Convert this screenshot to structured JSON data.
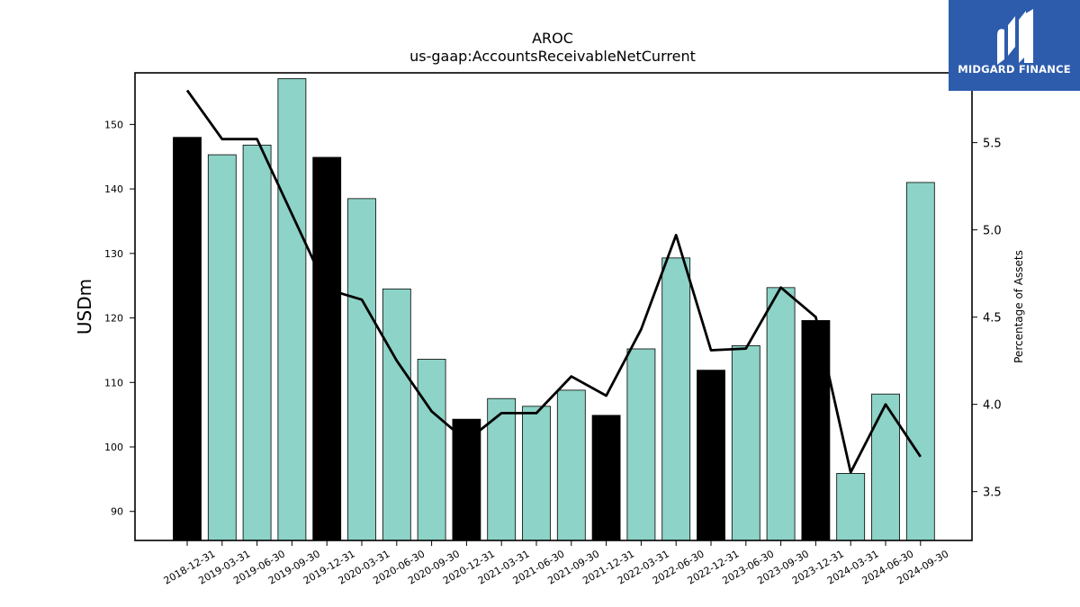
{
  "chart_data": {
    "type": "bar",
    "title": "AROC",
    "subtitle": "us-gaap:AccountsReceivableNetCurrent",
    "ylabel": "USDm",
    "y2label": "Percentage of Assets",
    "ylim": [
      85.5,
      158
    ],
    "y2lim": [
      3.22,
      5.9
    ],
    "yticks": [
      90,
      100,
      110,
      120,
      130,
      140,
      150
    ],
    "y2ticks": [
      3.5,
      4.0,
      4.5,
      5.0,
      5.5
    ],
    "categories": [
      "2018-12-31",
      "2019-03-31",
      "2019-06-30",
      "2019-09-30",
      "2019-12-31",
      "2020-03-31",
      "2020-06-30",
      "2020-09-30",
      "2020-12-31",
      "2021-03-31",
      "2021-06-30",
      "2021-09-30",
      "2021-12-31",
      "2022-03-31",
      "2022-06-30",
      "2022-12-31",
      "2023-06-30",
      "2023-09-30",
      "2023-12-31",
      "2024-03-31",
      "2024-06-30",
      "2024-09-30"
    ],
    "series": [
      {
        "type": "bar",
        "axis": "left",
        "values": [
          148.0,
          145.3,
          146.8,
          157.1,
          144.9,
          138.5,
          124.5,
          113.6,
          104.3,
          107.5,
          106.3,
          108.8,
          104.9,
          115.2,
          129.3,
          111.9,
          115.7,
          124.7,
          119.6,
          95.9,
          108.2,
          141.0
        ],
        "fiscal_year_end": [
          true,
          false,
          false,
          false,
          true,
          false,
          false,
          false,
          true,
          false,
          false,
          false,
          true,
          false,
          false,
          true,
          false,
          false,
          true,
          false,
          false,
          false
        ]
      },
      {
        "type": "line",
        "axis": "right",
        "values": [
          5.8,
          5.52,
          5.52,
          5.09,
          4.66,
          4.6,
          4.25,
          3.96,
          3.79,
          3.95,
          3.95,
          4.16,
          4.05,
          4.43,
          4.97,
          4.31,
          4.32,
          4.67,
          4.5,
          3.61,
          4.0,
          3.7
        ]
      }
    ],
    "colors": {
      "bar": "#8dd3c7",
      "fiscal_year_bar": "#000000",
      "line": "#000000"
    },
    "grid": false,
    "legend": "none"
  },
  "logo": {
    "text": "MIDGARD FINANCE",
    "icon": "midgard-logo-icon",
    "background": "#2d5cac"
  }
}
